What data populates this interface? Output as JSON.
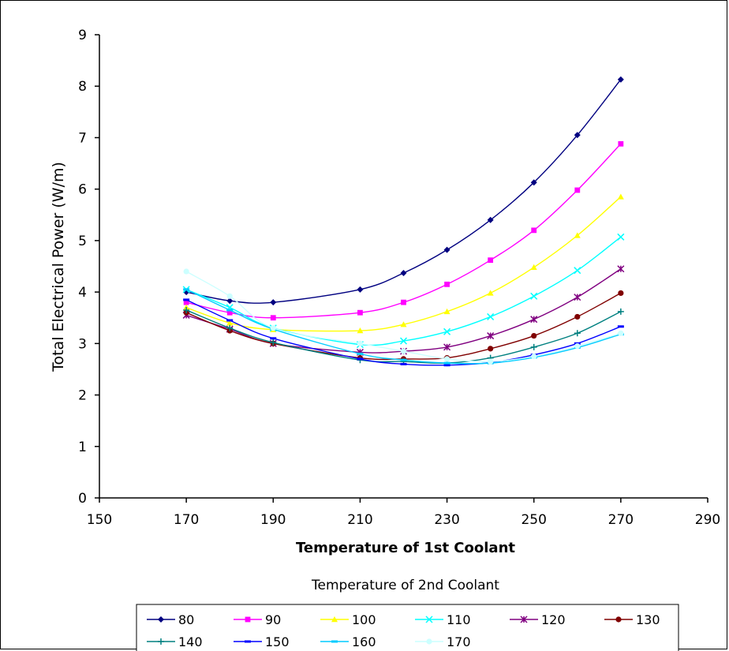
{
  "chart_data": {
    "type": "line",
    "title": "",
    "xlabel": "Temperature of 1st Coolant",
    "ylabel": "Total Electrical Power (W/m)",
    "xlim": [
      150,
      290
    ],
    "ylim": [
      0,
      9
    ],
    "xticks": [
      150,
      170,
      190,
      210,
      230,
      250,
      270,
      290
    ],
    "yticks": [
      0,
      1,
      2,
      3,
      4,
      5,
      6,
      7,
      8,
      9
    ],
    "grid": false,
    "legend_title": "Temperature of 2nd Coolant",
    "legend_position": "bottom",
    "x": [
      170,
      180,
      190,
      210,
      220,
      230,
      240,
      250,
      260,
      270
    ],
    "series": [
      {
        "name": "80",
        "color": "#000080",
        "marker": "diamond",
        "values": [
          4.0,
          3.83,
          3.8,
          4.05,
          4.37,
          4.82,
          5.4,
          6.13,
          7.05,
          8.13
        ]
      },
      {
        "name": "90",
        "color": "#FF00FF",
        "marker": "square",
        "values": [
          3.8,
          3.6,
          3.5,
          3.6,
          3.8,
          4.15,
          4.62,
          5.2,
          5.98,
          6.88
        ]
      },
      {
        "name": "100",
        "color": "#FFFF00",
        "marker": "triangle",
        "values": [
          3.7,
          3.4,
          3.27,
          3.25,
          3.37,
          3.62,
          3.98,
          4.48,
          5.1,
          5.85
        ]
      },
      {
        "name": "110",
        "color": "#00FFFF",
        "marker": "x",
        "values": [
          4.05,
          3.7,
          3.3,
          2.98,
          3.05,
          3.23,
          3.52,
          3.92,
          4.42,
          5.07
        ]
      },
      {
        "name": "120",
        "color": "#800080",
        "marker": "star",
        "values": [
          3.55,
          3.28,
          3.0,
          2.83,
          2.85,
          2.93,
          3.15,
          3.47,
          3.9,
          4.45
        ]
      },
      {
        "name": "130",
        "color": "#800000",
        "marker": "circle",
        "values": [
          3.6,
          3.25,
          3.0,
          2.72,
          2.7,
          2.72,
          2.9,
          3.15,
          3.52,
          3.98
        ]
      },
      {
        "name": "140",
        "color": "#008080",
        "marker": "plus",
        "values": [
          3.65,
          3.3,
          3.02,
          2.68,
          2.65,
          2.62,
          2.72,
          2.93,
          3.2,
          3.62
        ]
      },
      {
        "name": "150",
        "color": "#0000FF",
        "marker": "dash",
        "values": [
          3.85,
          3.45,
          3.1,
          2.7,
          2.6,
          2.58,
          2.63,
          2.78,
          3.0,
          3.33
        ]
      },
      {
        "name": "160",
        "color": "#00CCFF",
        "marker": "dash",
        "values": [
          4.05,
          3.65,
          3.28,
          2.8,
          2.68,
          2.62,
          2.62,
          2.73,
          2.92,
          3.18
        ]
      },
      {
        "name": "170",
        "color": "#CCFFFF",
        "marker": "circle",
        "values": [
          4.4,
          3.92,
          3.3,
          3.0,
          2.85,
          2.7,
          2.65,
          2.75,
          2.95,
          3.2
        ]
      }
    ]
  }
}
